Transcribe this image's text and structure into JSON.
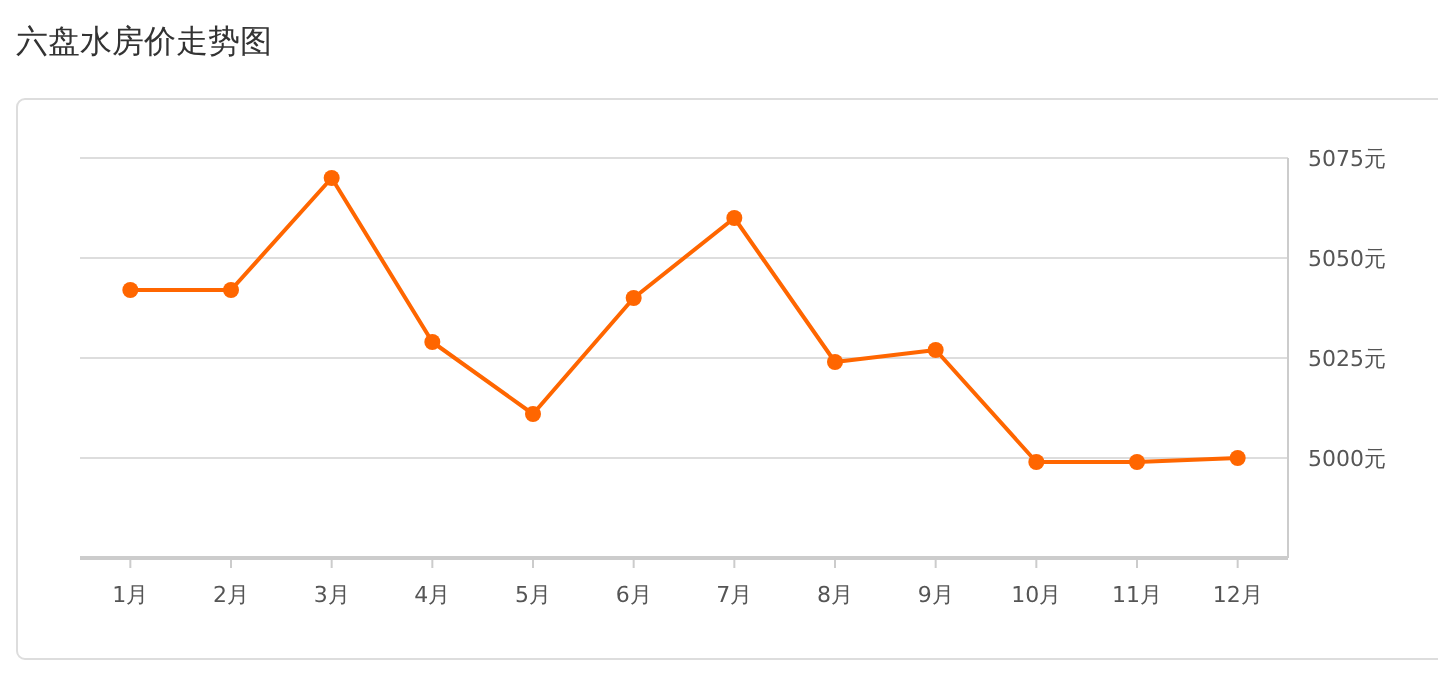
{
  "chart_data": {
    "type": "line",
    "title": "六盘水房价走势图",
    "categories": [
      "1月",
      "2月",
      "3月",
      "4月",
      "5月",
      "6月",
      "7月",
      "8月",
      "9月",
      "10月",
      "11月",
      "12月"
    ],
    "series": [
      {
        "color": "#ff6600",
        "values": [
          5042,
          5042,
          5070,
          5029,
          5011,
          5040,
          5060,
          5024,
          5027,
          4999,
          4999,
          5000
        ]
      }
    ],
    "ylim": [
      4975,
      5075
    ],
    "yticks": [
      {
        "value": 5000,
        "label": "5000元"
      },
      {
        "value": 5025,
        "label": "5025元"
      },
      {
        "value": 5050,
        "label": "5050元"
      },
      {
        "value": 5075,
        "label": "5075元"
      }
    ],
    "grid": "y",
    "marker": "circle",
    "line_style": "solid"
  }
}
